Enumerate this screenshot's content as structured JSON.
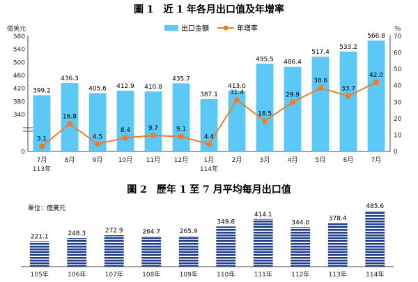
{
  "charts_text": {
    "fig1_title": "圖 1　近 1 年各月出口值及年增率",
    "fig1_ylabel_left": "億美元",
    "fig1_ylabel_right": "%",
    "fig1_legend_bar": "出口金額",
    "fig1_legend_line": "年增率",
    "fig2_title": "圖 2　歷年 1 至 7 月平均每月出口值",
    "fig2_unit": "單位：億美元"
  },
  "colors": {
    "bar1": "#5bc8f5",
    "line": "#f07c28",
    "bar2": "#1f3e8c",
    "axis": "#444444",
    "grid": "#d8d8d8"
  },
  "chart_data": [
    {
      "type": "bar",
      "title": "圖 1　近 1 年各月出口值及年增率",
      "categories": [
        "7月",
        "8月",
        "9月",
        "10月",
        "11月",
        "12月",
        "1月",
        "2月",
        "3月",
        "4月",
        "5月",
        "6月",
        "7月"
      ],
      "category_sublabels": [
        "113年",
        "",
        "",
        "",
        "",
        "",
        "114年",
        "",
        "",
        "",
        "",
        "",
        ""
      ],
      "series": [
        {
          "name": "出口金額",
          "type": "bar",
          "axis": "left",
          "values": [
            399.2,
            436.3,
            405.6,
            412.9,
            410.8,
            435.7,
            387.1,
            413.0,
            495.5,
            486.4,
            517.4,
            533.2,
            566.8
          ]
        },
        {
          "name": "年增率",
          "type": "line",
          "axis": "right",
          "values": [
            3.1,
            16.8,
            4.5,
            8.4,
            9.7,
            9.1,
            4.4,
            31.4,
            18.5,
            29.9,
            38.6,
            33.7,
            42.0
          ]
        }
      ],
      "ylabel": "億美元",
      "y_ticks": [
        0,
        340,
        380,
        420,
        460,
        500,
        540,
        580
      ],
      "y_axis_break": "between 0 and 340",
      "y2label": "%",
      "y2lim": [
        0,
        70
      ],
      "y2_ticks": [
        0,
        10,
        20,
        30,
        40,
        50,
        60,
        70
      ],
      "legend": "top-right",
      "grid": false
    },
    {
      "type": "bar",
      "title": "圖 2　歷年 1 至 7 月平均每月出口值",
      "unit_label": "單位：億美元",
      "categories": [
        "105年",
        "106年",
        "107年",
        "108年",
        "109年",
        "110年",
        "111年",
        "112年",
        "113年",
        "114年"
      ],
      "values": [
        221.1,
        248.3,
        272.9,
        264.7,
        265.9,
        349.8,
        414.1,
        344.0,
        378.4,
        485.6
      ],
      "grid": false
    }
  ]
}
